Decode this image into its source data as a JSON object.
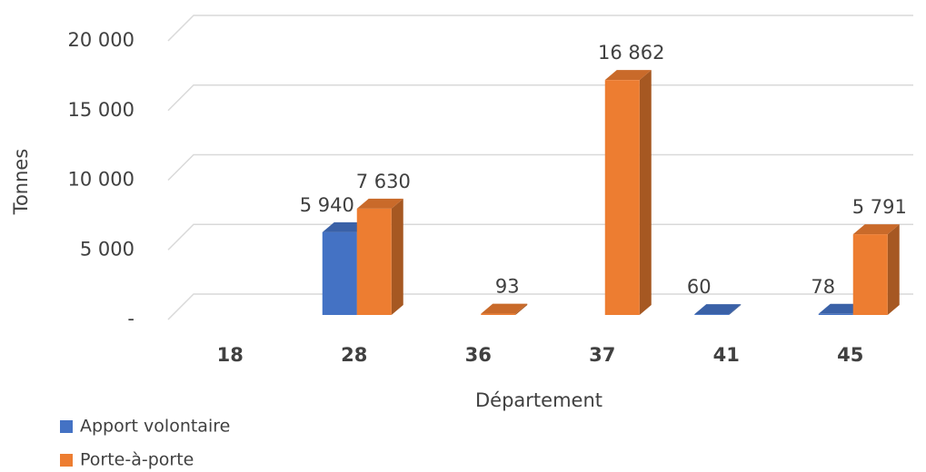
{
  "chart_data": {
    "type": "bar3d",
    "xlabel": "Département",
    "ylabel": "Tonnes",
    "categories": [
      "18",
      "28",
      "36",
      "37",
      "41",
      "45"
    ],
    "series": [
      {
        "name": "Apport volontaire",
        "color": "#4472c4",
        "values": [
          null,
          5940,
          null,
          null,
          60,
          78
        ],
        "value_labels": [
          null,
          "5 940",
          null,
          null,
          "60",
          "78"
        ]
      },
      {
        "name": "Porte-à-porte",
        "color": "#ed7d31",
        "values": [
          null,
          7630,
          93,
          16862,
          null,
          5791
        ],
        "value_labels": [
          null,
          "7 630",
          "93",
          "16 862",
          null,
          "5 791"
        ]
      }
    ],
    "ylim": [
      0,
      20000
    ],
    "yticks": [
      {
        "value": 0,
        "label": "-"
      },
      {
        "value": 5000,
        "label": "5 000"
      },
      {
        "value": 10000,
        "label": "10 000"
      },
      {
        "value": 15000,
        "label": "15 000"
      },
      {
        "value": 20000,
        "label": "20 000"
      }
    ],
    "grid": true,
    "legend": "bottom-left"
  }
}
